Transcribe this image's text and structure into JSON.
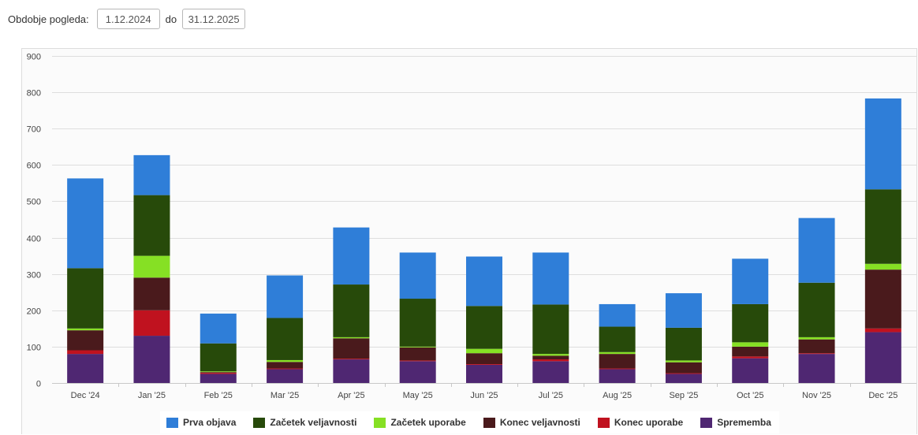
{
  "filter": {
    "label": "Obdobje pogleda:",
    "date_from": "1.12.2024",
    "separator": "do",
    "date_to": "31.12.2025"
  },
  "chart_data": {
    "type": "bar",
    "stacked": true,
    "categories": [
      "Dec '24",
      "Jan '25",
      "Feb '25",
      "Mar '25",
      "Apr '25",
      "May '25",
      "Jun '25",
      "Jul '25",
      "Aug '25",
      "Sep '25",
      "Oct '25",
      "Nov '25",
      "Dec '25"
    ],
    "ylim": [
      0,
      900
    ],
    "yticks": [
      0,
      100,
      200,
      300,
      400,
      500,
      600,
      700,
      800,
      900
    ],
    "grid": true,
    "legend_position": "bottom",
    "series": [
      {
        "name": "Sprememba",
        "color": "#4f2772",
        "values": [
          80,
          130,
          25,
          38,
          65,
          60,
          50,
          60,
          38,
          25,
          68,
          80,
          140
        ]
      },
      {
        "name": "Konec uporabe",
        "color": "#c0121f",
        "values": [
          10,
          70,
          3,
          2,
          2,
          2,
          2,
          5,
          2,
          2,
          5,
          2,
          10
        ]
      },
      {
        "name": "Konec veljavnosti",
        "color": "#4a1a1c",
        "values": [
          55,
          90,
          2,
          18,
          56,
          36,
          30,
          10,
          40,
          30,
          27,
          38,
          162
        ]
      },
      {
        "name": "Začetek uporabe",
        "color": "#86e024",
        "values": [
          5,
          60,
          2,
          5,
          3,
          2,
          12,
          5,
          5,
          5,
          12,
          6,
          16
        ]
      },
      {
        "name": "Začetek veljavnosti",
        "color": "#274a0a",
        "values": [
          166,
          167,
          77,
          116,
          145,
          132,
          118,
          136,
          70,
          90,
          105,
          150,
          205
        ]
      },
      {
        "name": "Prva objava",
        "color": "#2f7ed8",
        "values": [
          247,
          110,
          82,
          117,
          157,
          127,
          136,
          143,
          62,
          95,
          125,
          178,
          250
        ]
      }
    ]
  },
  "legend": [
    {
      "label": "Prva objava",
      "color": "#2f7ed8"
    },
    {
      "label": "Začetek veljavnosti",
      "color": "#274a0a"
    },
    {
      "label": "Začetek uporabe",
      "color": "#86e024"
    },
    {
      "label": "Konec veljavnosti",
      "color": "#4a1a1c"
    },
    {
      "label": "Konec uporabe",
      "color": "#c0121f"
    },
    {
      "label": "Sprememba",
      "color": "#4f2772"
    }
  ]
}
